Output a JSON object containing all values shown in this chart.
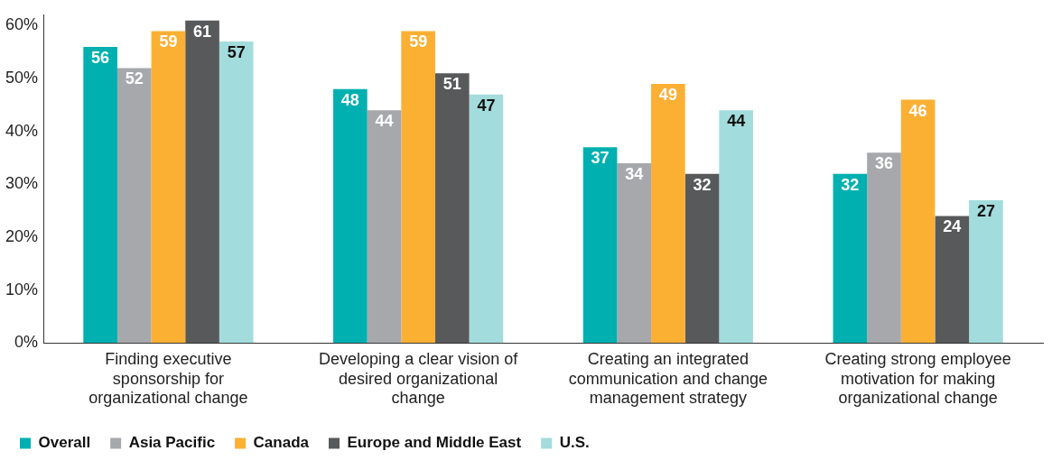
{
  "chart_data": {
    "type": "bar",
    "categories": [
      "Finding executive sponsorship for organizational change",
      "Developing a clear vision of desired organizational change",
      "Creating an integrated communication and change management strategy",
      "Creating strong employee motivation for making organizational change"
    ],
    "series": [
      {
        "name": "Overall",
        "color": "#00b0b0",
        "values": [
          56,
          48,
          37,
          32
        ]
      },
      {
        "name": "Asia Pacific",
        "color": "#a7a8ac",
        "values": [
          52,
          44,
          34,
          36
        ]
      },
      {
        "name": "Canada",
        "color": "#fbb034",
        "values": [
          59,
          59,
          49,
          46
        ]
      },
      {
        "name": "Europe and Middle East",
        "color": "#58595b",
        "values": [
          61,
          51,
          32,
          24
        ]
      },
      {
        "name": "U.S.",
        "color": "#a3dcdc",
        "values": [
          57,
          47,
          44,
          27
        ]
      }
    ],
    "ylim": [
      0,
      62
    ],
    "yticks": [
      {
        "value": 0,
        "label": "0%"
      },
      {
        "value": 10,
        "label": "10%"
      },
      {
        "value": 20,
        "label": "20%"
      },
      {
        "value": 30,
        "label": "30%"
      },
      {
        "value": 40,
        "label": "40%"
      },
      {
        "value": 50,
        "label": "50%"
      },
      {
        "value": 60,
        "label": "60%"
      }
    ],
    "grid": false,
    "legend": "bottom",
    "data_labels": true
  }
}
